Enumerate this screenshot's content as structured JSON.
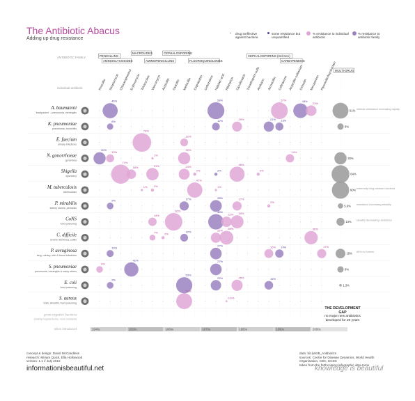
{
  "header": {
    "title": "The Antibiotic Abacus",
    "subtitle": "Adding up drug resistance"
  },
  "legend": {
    "ineffective": "drug ineffective against bacteria",
    "some_resistance": "some resistance but unquantified",
    "pct_individual": "% resistance to individual antibiotic",
    "pct_family": "% resistance to antibiotic family"
  },
  "colors": {
    "pink": "#e0a7d6",
    "pink_text": "#b8479e",
    "purple": "#9b82c1",
    "purple_dot": "#5a3f97",
    "grey": "#9f9f9f",
    "dark_grey": "#777777"
  },
  "chart_data": {
    "type": "scatter",
    "title": "The Antibiotic Abacus",
    "subtitle": "Adding up drug resistance",
    "family_label": "ANTIBIOTIC FAMILY",
    "individual_label": "individual antibiotic",
    "families": [
      "PENICILLINS",
      "AMINOGLYCOSIDES",
      "MACROLIDES",
      "AMINOPENICILLINS",
      "CEPHALOSPORINS",
      "FLUOROQUINOLONES",
      "CEPHALOSPORINS (3rd Gen)",
      "CARBAPENEMS",
      "MULTI-DRUG"
    ],
    "antibiotics": [
      "Penicillin",
      "Streptomycin",
      "Chloramphenicol",
      "Erythromycin",
      "Tetracycline",
      "Vancomycin",
      "Ampicillin",
      "Oxacillin",
      "Methicillin",
      "Cephalothin",
      "Ceftazidime",
      "Nalidixic acid",
      "Rifampicin",
      "Ciprofloxacin",
      "Trimethoprim-sulfa",
      "Amikacin",
      "Amoxicillin",
      "Ceftriaxone",
      "Ampicillin-sulbactam",
      "Cefoxitin",
      "Meropenem",
      "Piperacillin/tazobactam"
    ],
    "bacteria": [
      {
        "name": "A. baumannii",
        "desc": "'backpacker' - pneumonia, meningitis",
        "note": "intrinsic resistance increasing rapidly",
        "multi": "51%",
        "resist": [
          {
            "a": "Streptomycin",
            "v": 46,
            "kind": "family"
          },
          {
            "a": "Nalidixic acid",
            "v": 58,
            "kind": "family"
          },
          {
            "a": "Ceftriaxone",
            "v": 57,
            "kind": "individual"
          },
          {
            "a": "Cefoxitin",
            "v": 43,
            "kind": "family"
          },
          {
            "a": "Meropenem",
            "v": 23,
            "kind": "individual"
          }
        ]
      },
      {
        "name": "K. pneumoniae",
        "desc": "pneumonia, bronchitis",
        "note": "",
        "multi": "8%",
        "resist": [
          {
            "a": "Streptomycin",
            "v": 8,
            "kind": "family"
          },
          {
            "a": "Nalidixic acid",
            "v": 12,
            "kind": "family"
          },
          {
            "a": "Ciprofloxacin",
            "v": 20,
            "kind": "individual"
          },
          {
            "a": "Amoxicillin",
            "v": 21,
            "kind": "family"
          },
          {
            "a": "Ceftriaxone",
            "v": 13,
            "kind": "family"
          }
        ]
      },
      {
        "name": "E. faecium",
        "desc": "urinary infections",
        "note": "",
        "multi": "",
        "resist": [
          {
            "a": "Tetracycline",
            "v": 70,
            "kind": "individual"
          },
          {
            "a": "Methicillin",
            "v": 12,
            "kind": "individual"
          }
        ]
      },
      {
        "name": "N. gonorrhoeae",
        "desc": "gonorrhea",
        "note": "",
        "multi": "30%",
        "resist": [
          {
            "a": "Penicillin",
            "v": 30,
            "kind": "family"
          },
          {
            "a": "Streptomycin",
            "v": 13,
            "kind": "individual"
          },
          {
            "a": "Vancomycin",
            "v": 1,
            "kind": "individual"
          },
          {
            "a": "Methicillin",
            "v": 30,
            "kind": "individual"
          },
          {
            "a": "Ampicillin-sulbactam",
            "v": 14,
            "kind": "individual"
          }
        ]
      },
      {
        "name": "Shigella",
        "desc": "dysentery",
        "note": "",
        "multi": "64%",
        "resist": [
          {
            "a": "Chloramphenicol",
            "v": 74,
            "kind": "individual"
          },
          {
            "a": "Erythromycin",
            "v": 18,
            "kind": "individual"
          },
          {
            "a": "Vancomycin",
            "v": 31,
            "kind": "individual"
          },
          {
            "a": "Methicillin",
            "v": 24,
            "kind": "individual"
          },
          {
            "a": "Cephalothin",
            "v": 2,
            "kind": "individual"
          },
          {
            "a": "Nalidixic acid",
            "v": 2,
            "kind": "family"
          },
          {
            "a": "Ciprofloxacin",
            "v": 46,
            "kind": "individual"
          },
          {
            "a": "Amikacin",
            "v": 2,
            "kind": "individual"
          }
        ]
      },
      {
        "name": "M. tuberculosis",
        "desc": "tuberculosis",
        "note": "extremely drug resistant bacteria",
        "multi": "60%",
        "resist": [
          {
            "a": "Tetracycline",
            "v": 1,
            "kind": "individual"
          },
          {
            "a": "Vancomycin",
            "v": 2,
            "kind": "individual"
          },
          {
            "a": "Cephalothin",
            "v": 47,
            "kind": "individual"
          },
          {
            "a": "Nalidixic acid",
            "v": 1,
            "kind": "individual"
          }
        ]
      },
      {
        "name": "P. mirabilis",
        "desc": "kidney stones, pertussis",
        "note": "resistance increasing steadily",
        "multi": "5.6%",
        "resist": [
          {
            "a": "Streptomycin",
            "v": 9,
            "kind": "family"
          },
          {
            "a": "Methicillin",
            "v": 17,
            "kind": "family"
          },
          {
            "a": "Nalidixic acid",
            "v": 28,
            "kind": "family"
          },
          {
            "a": "Ciprofloxacin",
            "v": 17,
            "kind": "individual"
          },
          {
            "a": "Amoxicillin",
            "v": 2,
            "kind": "individual"
          }
        ]
      },
      {
        "name": "CoNS",
        "desc": "food poisoning",
        "note": "steadily decreasing resistance",
        "multi": "13%",
        "resist": [
          {
            "a": "Vancomycin",
            "v": 14,
            "kind": "individual"
          },
          {
            "a": "Oxacillin",
            "v": 62,
            "kind": "individual"
          },
          {
            "a": "Nalidixic acid",
            "v": 48,
            "kind": "family"
          },
          {
            "a": "Rifampicin",
            "v": 22,
            "kind": "individual"
          },
          {
            "a": "Ciprofloxacin",
            "v": 34,
            "kind": "individual"
          }
        ]
      },
      {
        "name": "C. difficile",
        "desc": "severe diarrhoea, colitis",
        "note": "",
        "multi": "",
        "resist": [
          {
            "a": "Vancomycin",
            "v": 7,
            "kind": "individual"
          },
          {
            "a": "Ampicillin",
            "v": 2,
            "kind": "individual"
          },
          {
            "a": "Methicillin",
            "v": 12,
            "kind": "family"
          },
          {
            "a": "Nalidixic acid",
            "v": 21,
            "kind": "individual"
          },
          {
            "a": "Rifampicin",
            "v": 38,
            "kind": "individual"
          },
          {
            "a": "Meropenem",
            "v": 36,
            "kind": "individual"
          }
        ]
      },
      {
        "name": "P. aeruginosa",
        "desc": "lung, urinary, skin & blood infections",
        "note": "60% in Greece",
        "multi": "19%",
        "resist": [
          {
            "a": "Streptomycin",
            "v": 10,
            "kind": "family"
          },
          {
            "a": "Nalidixic acid",
            "v": 27,
            "kind": "family"
          },
          {
            "a": "Amoxicillin",
            "v": 16,
            "kind": "individual"
          },
          {
            "a": "Ceftriaxone",
            "v": 14,
            "kind": "family"
          },
          {
            "a": "Piperacillin/tazobactam",
            "v": 17,
            "kind": "individual"
          }
        ]
      },
      {
        "name": "S. pneumoniae",
        "desc": "pneumonia, meningitis & many others",
        "note": "",
        "multi": "8%",
        "resist": [
          {
            "a": "Penicillin",
            "v": 9,
            "kind": "individual"
          },
          {
            "a": "Erythromycin",
            "v": 41,
            "kind": "family"
          },
          {
            "a": "Nalidixic acid",
            "v": 27,
            "kind": "family"
          }
        ]
      },
      {
        "name": "E. coli",
        "desc": "food poisoning",
        "note": "",
        "multi": "1.3%",
        "resist": [
          {
            "a": "Streptomycin",
            "v": 9,
            "kind": "family"
          },
          {
            "a": "Methicillin",
            "v": 53,
            "kind": "family"
          },
          {
            "a": "Nalidixic acid",
            "v": 22,
            "kind": "family"
          },
          {
            "a": "Ciprofloxacin",
            "v": 25,
            "kind": "individual"
          },
          {
            "a": "Amoxicillin",
            "v": 15,
            "kind": "family"
          }
        ]
      },
      {
        "name": "S. aureus",
        "desc": "boils, sinusitis, food poisoning",
        "note": "",
        "multi": "",
        "resist": [
          {
            "a": "Methicillin",
            "v": 51,
            "kind": "individual"
          },
          {
            "a": "Rifampicin",
            "v": 0.6,
            "kind": "individual"
          }
        ]
      }
    ],
    "last_row": "gram-negative bacteria",
    "last_row_desc": "(mainly hospital-borne, more resistant)",
    "decades_label": "when introduced",
    "decades": [
      "1940s",
      "1950s",
      "1960s",
      "1970s",
      "1980s",
      "1990s",
      "2000s"
    ]
  },
  "gap": {
    "title": "THE DEVELOPMENT GAP",
    "text": "no major new antibiotics developed for 20 years"
  },
  "footer": {
    "concept": "concept & design: David McCandless",
    "research": "research: Miriam Quick, Ella Hollowood",
    "version": "version: 1.1 // July 2016",
    "brand": "informationisbeautiful.net",
    "data": "data: bit.ly/KIB_Antibiotics",
    "sources": "sources: Centre for Disease Dynamics, World Health Organisation, CDC, ECDC",
    "taken": "taken from the forthcoming infographic ultra-tome",
    "motto": "knowledge is beautiful"
  }
}
